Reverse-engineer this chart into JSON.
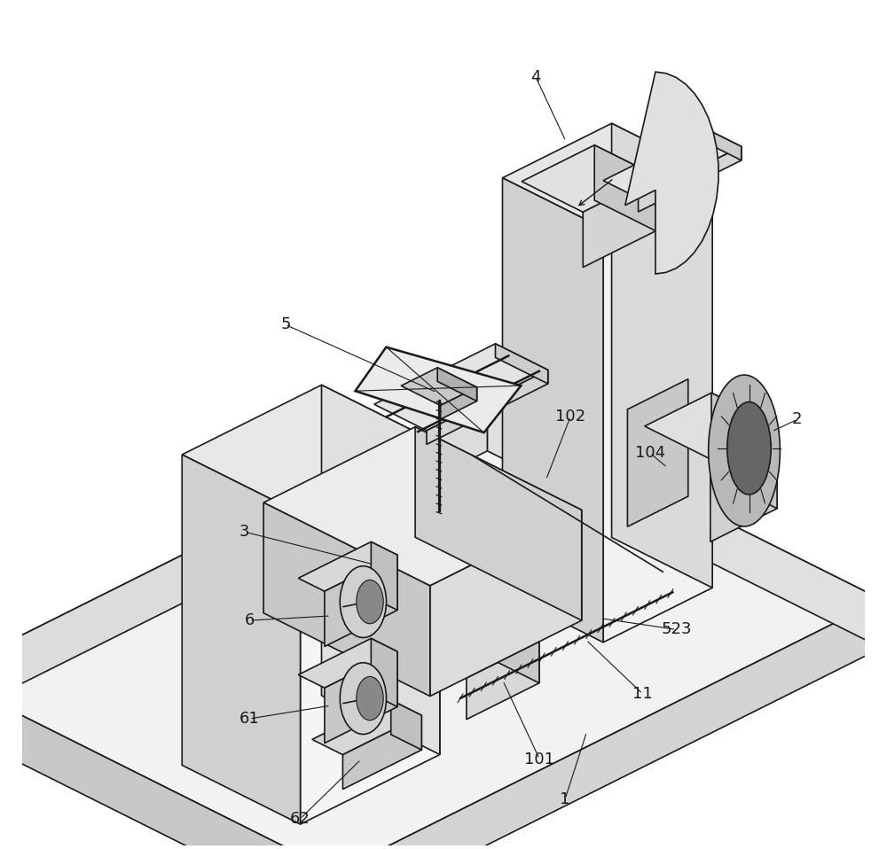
{
  "title": "",
  "bg_color": "#ffffff",
  "line_color": "#1a1a1a",
  "line_width": 1.2,
  "figsize": [
    10.0,
    9.58
  ]
}
